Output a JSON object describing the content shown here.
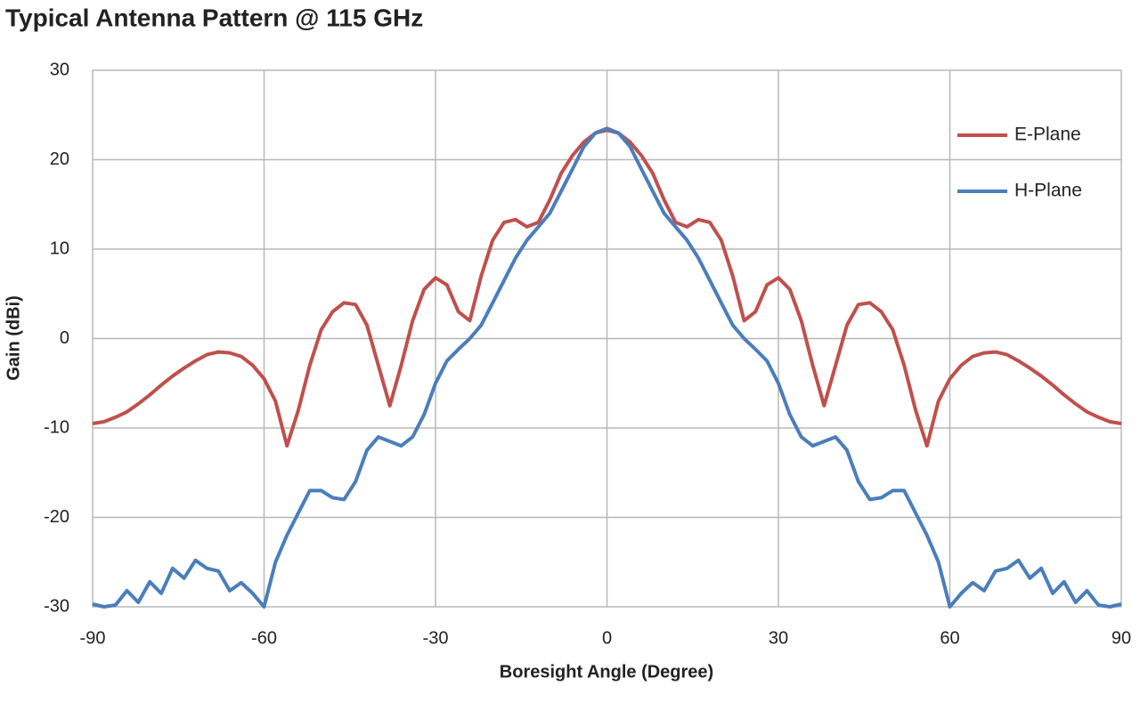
{
  "chart_data": {
    "type": "line",
    "title": "Typical Antenna Pattern @ 115 GHz",
    "x_label": "Boresight Angle (Degree)",
    "y_label": "Gain (dBi)",
    "x": [
      -90,
      -88,
      -86,
      -84,
      -82,
      -80,
      -78,
      -76,
      -74,
      -72,
      -70,
      -68,
      -66,
      -64,
      -62,
      -60,
      -58,
      -56,
      -54,
      -52,
      -50,
      -48,
      -46,
      -44,
      -42,
      -40,
      -38,
      -36,
      -34,
      -32,
      -30,
      -28,
      -26,
      -24,
      -22,
      -20,
      -18,
      -16,
      -14,
      -12,
      -10,
      -8,
      -6,
      -4,
      -2,
      0,
      2,
      4,
      6,
      8,
      10,
      12,
      14,
      16,
      18,
      20,
      22,
      24,
      26,
      28,
      30,
      32,
      34,
      36,
      38,
      40,
      42,
      44,
      46,
      48,
      50,
      52,
      54,
      56,
      58,
      60,
      62,
      64,
      66,
      68,
      70,
      72,
      74,
      76,
      78,
      80,
      82,
      84,
      86,
      88,
      90
    ],
    "series": [
      {
        "name": "E-Plane",
        "color": "#c0504d",
        "values": [
          -9.5,
          -9.3,
          -8.8,
          -8.2,
          -7.3,
          -6.3,
          -5.2,
          -4.2,
          -3.3,
          -2.5,
          -1.8,
          -1.5,
          -1.6,
          -2,
          -3,
          -4.5,
          -7,
          -12,
          -8,
          -3,
          1,
          3,
          4,
          3.8,
          1.5,
          -3,
          -7.5,
          -3,
          2,
          5.5,
          6.8,
          6,
          3,
          2,
          7,
          11,
          13,
          13.3,
          12.5,
          13,
          15.5,
          18.5,
          20.5,
          22,
          23,
          23.3,
          23,
          22,
          20.5,
          18.5,
          15.5,
          13,
          12.5,
          13.3,
          13,
          11,
          7,
          2,
          3,
          6,
          6.8,
          5.5,
          2,
          -3,
          -7.5,
          -3,
          1.5,
          3.8,
          4,
          3,
          1,
          -3,
          -8,
          -12,
          -7,
          -4.5,
          -3,
          -2,
          -1.6,
          -1.5,
          -1.8,
          -2.5,
          -3.3,
          -4.2,
          -5.2,
          -6.3,
          -7.3,
          -8.2,
          -8.8,
          -9.3,
          -9.5
        ]
      },
      {
        "name": "H-Plane",
        "color": "#4a7ebb",
        "values": [
          -29.7,
          -30,
          -29.8,
          -28.2,
          -29.5,
          -27.2,
          -28.5,
          -25.7,
          -26.8,
          -24.8,
          -25.7,
          -26,
          -28.2,
          -27.3,
          -28.5,
          -30,
          -25,
          -22,
          -19.5,
          -17,
          -17,
          -17.8,
          -18,
          -16,
          -12.5,
          -11,
          -11.5,
          -12,
          -11,
          -8.5,
          -5,
          -2.5,
          -1.2,
          0,
          1.5,
          4,
          6.5,
          9,
          11,
          12.5,
          14,
          16.5,
          19,
          21.5,
          23,
          23.5,
          23,
          21.5,
          19,
          16.5,
          14,
          12.5,
          11,
          9,
          6.5,
          4,
          1.5,
          0,
          -1.2,
          -2.5,
          -5,
          -8.5,
          -11,
          -12,
          -11.5,
          -11,
          -12.5,
          -16,
          -18,
          -17.8,
          -17,
          -17,
          -19.5,
          -22,
          -25,
          -30,
          -28.5,
          -27.3,
          -28.2,
          -26,
          -25.7,
          -24.8,
          -26.8,
          -25.7,
          -28.5,
          -27.2,
          -29.5,
          -28.2,
          -29.8,
          -30,
          -29.7
        ]
      }
    ],
    "xlim": [
      -90,
      90
    ],
    "xticks": [
      -90,
      -60,
      -30,
      0,
      30,
      60,
      90
    ],
    "ylim": [
      -30,
      30
    ],
    "yticks": [
      -30,
      -20,
      -10,
      0,
      10,
      20,
      30
    ],
    "grid": true,
    "legend": "upper right"
  }
}
